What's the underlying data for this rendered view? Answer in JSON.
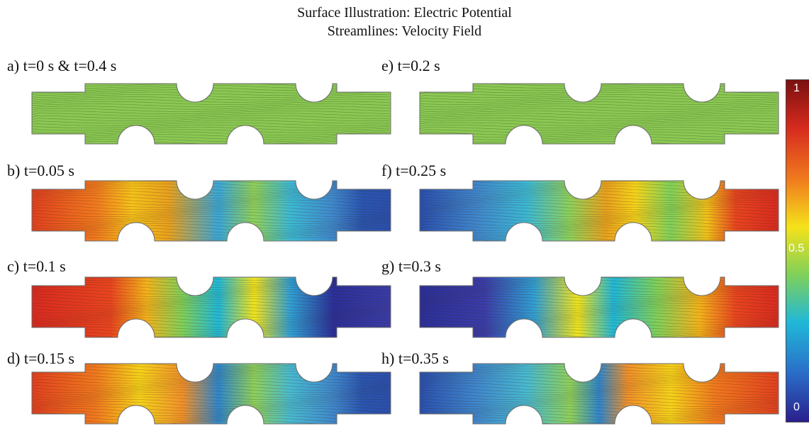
{
  "header": {
    "line1": "Surface Illustration: Electric Potential",
    "line2": "Streamlines: Velocity Field"
  },
  "panels": [
    {
      "label": "a)  t=0 s  & t=0.4 s",
      "state": "uniform"
    },
    {
      "label": "b) t=0.05 s",
      "state": "leftHigh1"
    },
    {
      "label": "c) t=0.1 s",
      "state": "leftHigh2"
    },
    {
      "label": "d) t=0.15 s",
      "state": "leftHigh3"
    },
    {
      "label": "e) t=0.2 s",
      "state": "uniform"
    },
    {
      "label": "f) t=0.25 s",
      "state": "rightHigh1"
    },
    {
      "label": "g) t=0.3 s",
      "state": "rightHigh2"
    },
    {
      "label": "h) t=0.35 s",
      "state": "rightHigh3"
    }
  ],
  "colorbar": {
    "max_label": "1",
    "mid_label": "0.5",
    "min_label": "0",
    "colors": [
      "#7a1010",
      "#d62a1e",
      "#f07a1e",
      "#f5e21a",
      "#7fd05a",
      "#20b8d8",
      "#2a6cc8",
      "#2a1f8c"
    ]
  }
}
